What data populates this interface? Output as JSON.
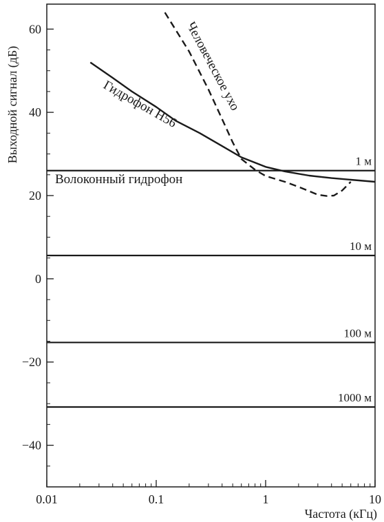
{
  "chart_data": {
    "type": "line",
    "xlabel": "Частота (кГц)",
    "ylabel": "Выходной сигнал (дБ)",
    "xscale": "log",
    "xlim": [
      0.01,
      10
    ],
    "ylim": [
      -50,
      66
    ],
    "x_ticks": [
      {
        "value": 0.01,
        "label": "0.01"
      },
      {
        "value": 0.1,
        "label": "0.1"
      },
      {
        "value": 1,
        "label": "1"
      },
      {
        "value": 10,
        "label": "10"
      }
    ],
    "y_ticks": [
      {
        "value": -40,
        "label": "−40"
      },
      {
        "value": -20,
        "label": "−20"
      },
      {
        "value": 0,
        "label": "0"
      },
      {
        "value": 20,
        "label": "20"
      },
      {
        "value": 40,
        "label": "40"
      },
      {
        "value": 60,
        "label": "60"
      }
    ],
    "y_minor_ticks": [
      -45,
      -35,
      -30,
      -25,
      -15,
      -10,
      -5,
      5,
      10,
      15,
      25,
      30,
      35,
      45,
      50,
      55
    ],
    "grid": false,
    "series": [
      {
        "name": "Гидрофон Н56",
        "style": "solid",
        "x": [
          0.025,
          0.04,
          0.06,
          0.1,
          0.15,
          0.25,
          0.4,
          0.6,
          1,
          1.5,
          2.5,
          4,
          6,
          10
        ],
        "y": [
          52,
          48.3,
          45,
          41.3,
          38,
          35,
          31.9,
          29.2,
          26.9,
          25.8,
          24.8,
          24.2,
          23.8,
          23.3
        ]
      },
      {
        "name": "Человеческое ухо",
        "style": "dashed",
        "x": [
          0.12,
          0.2,
          0.3,
          0.4,
          0.5,
          0.6,
          0.8,
          1,
          1.5,
          2,
          3,
          3.6,
          4.2,
          5,
          6
        ],
        "y": [
          64,
          54.6,
          45.5,
          38.4,
          32.8,
          28.8,
          26.2,
          24.7,
          23.3,
          22.1,
          20.2,
          19.9,
          20,
          21.2,
          23.3
        ]
      }
    ],
    "reference_lines": [
      {
        "label": "1 м",
        "y": 26
      },
      {
        "label": "10 м",
        "y": 5.6
      },
      {
        "label": "100 м",
        "y": -15.3
      },
      {
        "label": "1000 м",
        "y": -30.8
      }
    ],
    "annotations": {
      "hydrophone": "Гидрофон Н56",
      "ear": "Человеческое ухо",
      "fiber": "Волоконный гидрофон"
    }
  }
}
